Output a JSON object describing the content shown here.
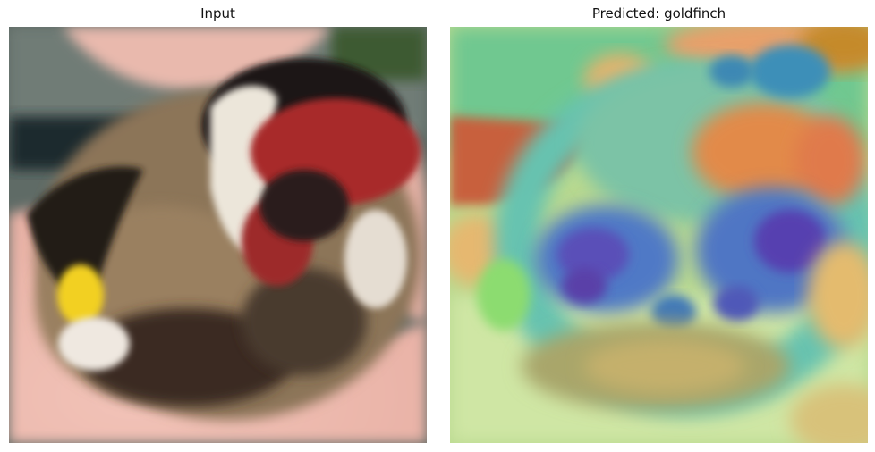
{
  "figure": {
    "left_panel": {
      "title": "Input"
    },
    "right_panel": {
      "title": "Predicted: goldfinch"
    }
  },
  "icons": {
    "left_image": "bird-photo-icon",
    "right_image": "attention-heatmap-icon"
  }
}
